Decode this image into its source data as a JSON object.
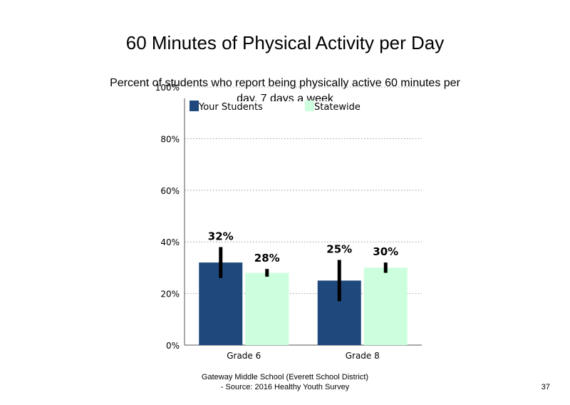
{
  "slide": {
    "title": "60 Minutes of Physical Activity per Day",
    "subtitle": "Percent of students  who report being physically active 60 minutes  per day, 7 days a week",
    "footer_line1": "Gateway Middle  School  (Everett School District)",
    "footer_line2": "- Source: 2016 Healthy  Youth Survey",
    "page_number": "37"
  },
  "chart_data": {
    "type": "bar",
    "categories": [
      "Grade 6",
      "Grade 8"
    ],
    "series": [
      {
        "name": "Your Students",
        "color": "#1f497d",
        "values": [
          32,
          25
        ],
        "labels": [
          "32%",
          "25%"
        ],
        "error_low": [
          26,
          17
        ],
        "error_high": [
          38,
          33
        ]
      },
      {
        "name": "Statewide",
        "color": "#ccffdd",
        "values": [
          28,
          30
        ],
        "labels": [
          "28%",
          "30%"
        ],
        "error_low": [
          26.5,
          28
        ],
        "error_high": [
          29.5,
          32
        ]
      }
    ],
    "ylim": [
      0,
      100
    ],
    "yticks": [
      0,
      20,
      40,
      60,
      80,
      100
    ],
    "ytick_labels": [
      "0%",
      "20%",
      "40%",
      "60%",
      "80%",
      "100%"
    ],
    "grid": "horizontal dotted",
    "legend": "top"
  }
}
